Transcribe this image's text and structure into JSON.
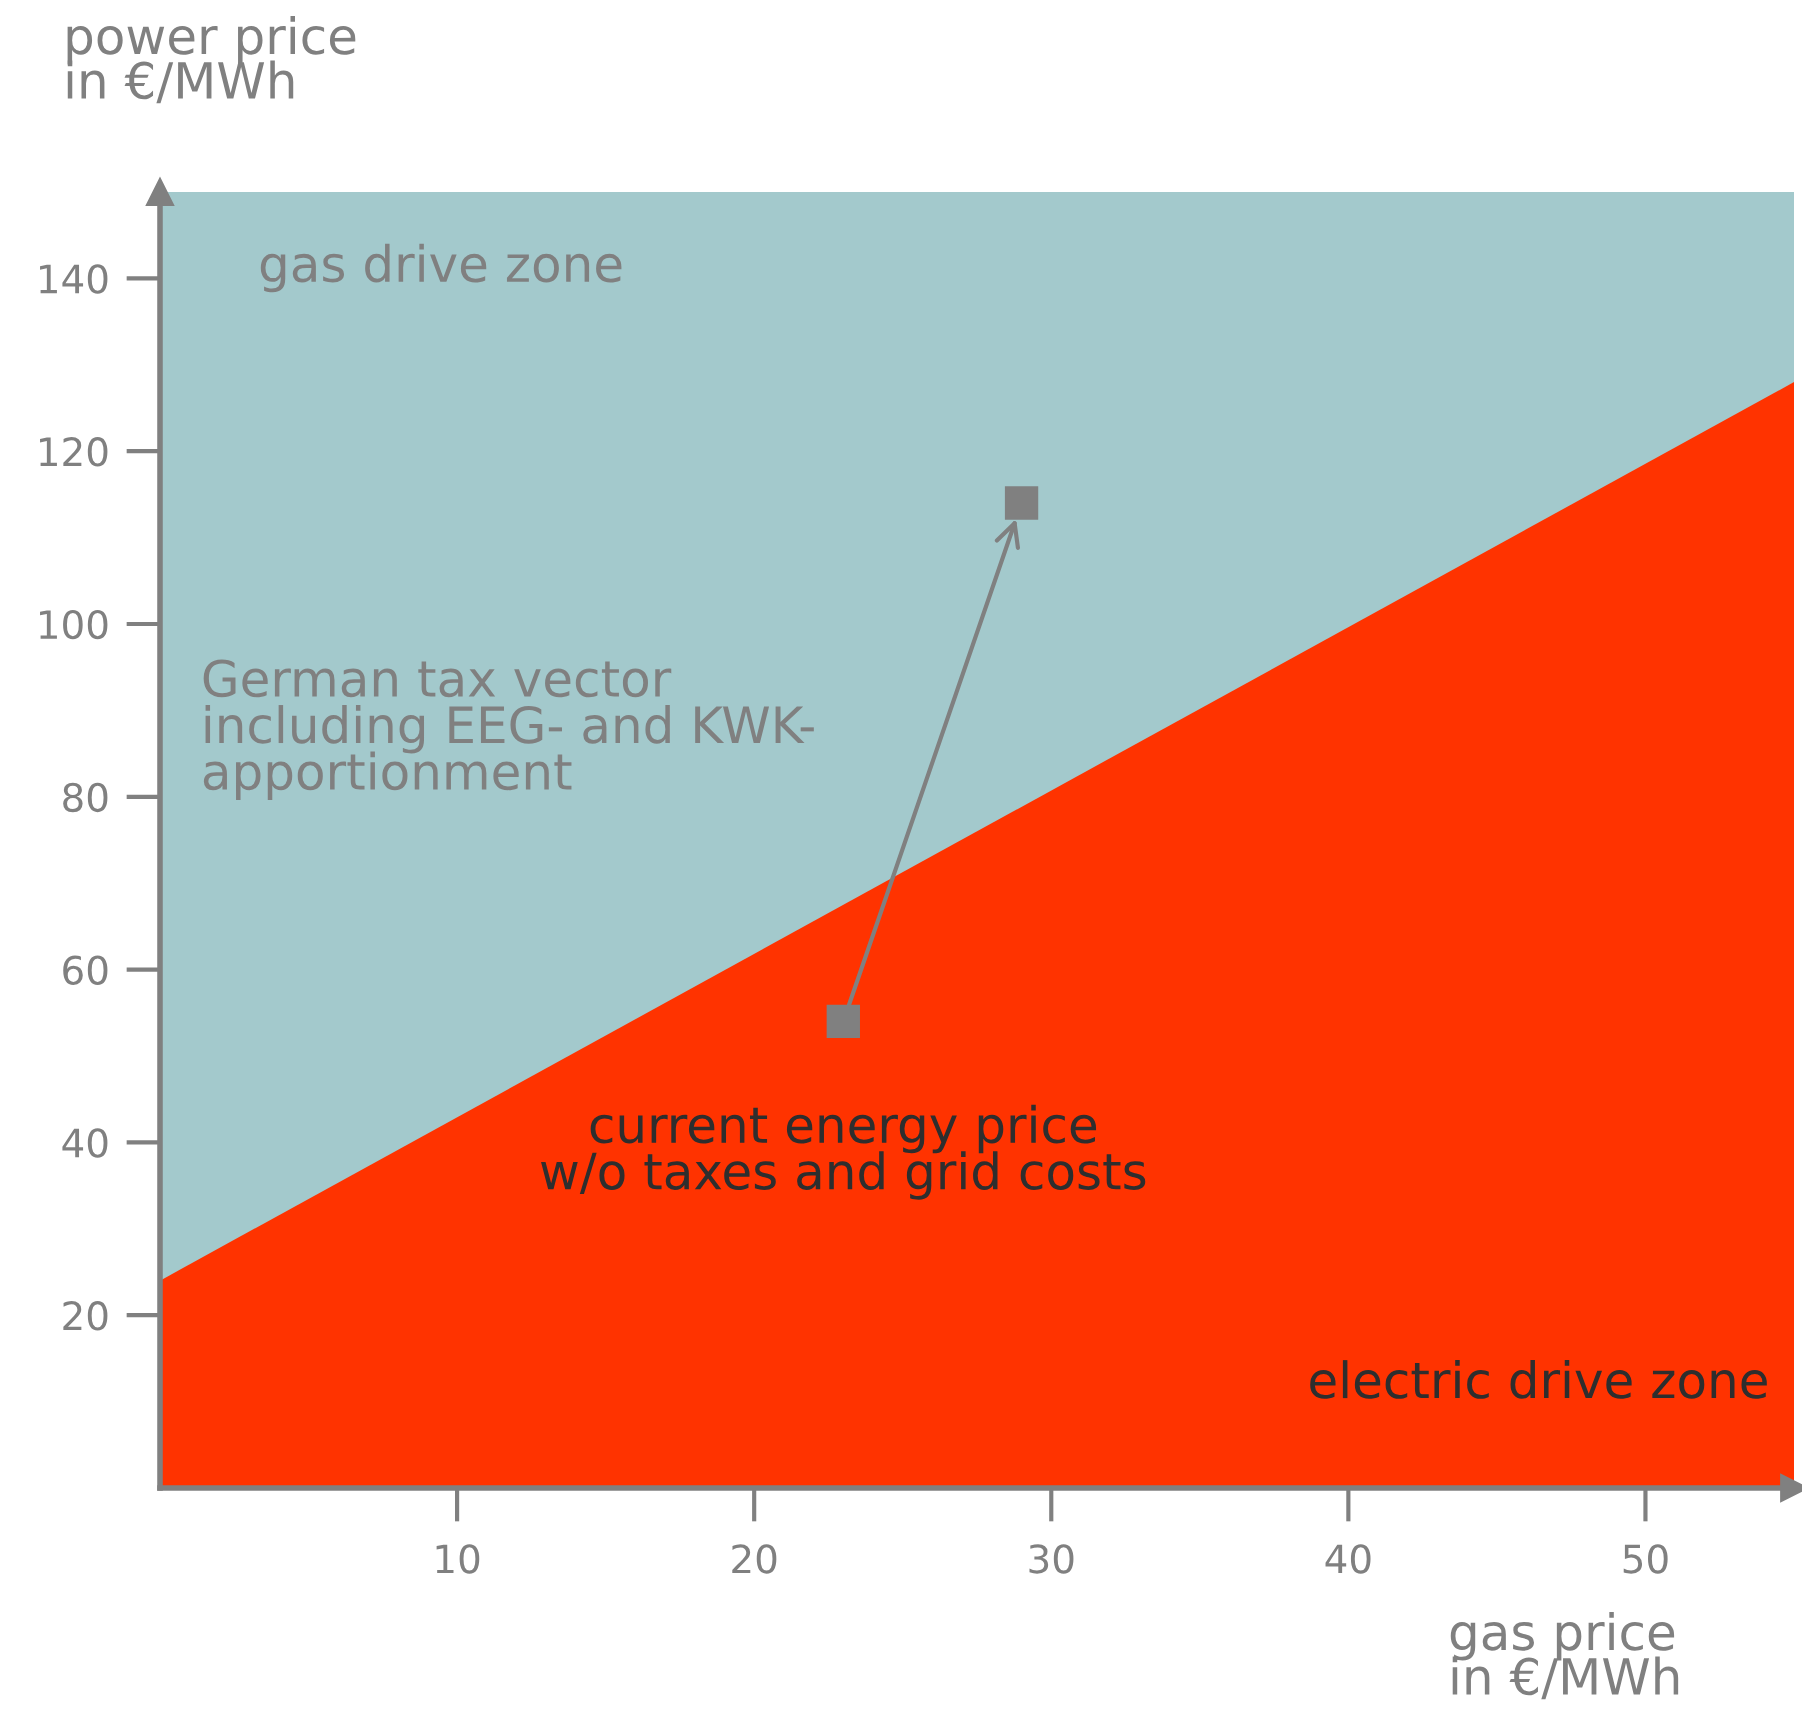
{
  "chart_data": {
    "type": "scatter",
    "xlabel": "gas price\nin €/MWh",
    "ylabel": "power price\nin €/MWh",
    "xlim": [
      0,
      55
    ],
    "xticks": [
      10,
      20,
      30,
      40,
      50
    ],
    "ylim": [
      0,
      150
    ],
    "yticks": [
      20,
      40,
      60,
      80,
      100,
      120,
      140
    ],
    "grid": false,
    "legend": false,
    "bands": [
      {
        "axis": "y",
        "from": 0,
        "to": 150,
        "color": "#a3c9cc"
      }
    ],
    "series": [
      {
        "type": "area",
        "x": [
          0,
          55
        ],
        "values": [
          24,
          128
        ],
        "color": "#ff3300"
      },
      {
        "x": [
          23,
          29
        ],
        "values": [
          54,
          114
        ],
        "color": "#808080",
        "marker": "square"
      }
    ],
    "annotations": [
      "gas drive zone",
      "German tax vector\nincluding EEG- and KWK-\napportionment",
      {
        "text": "current energy price\nw/o taxes and grid costs",
        "x": 23,
        "y": 54
      },
      "electric drive zone"
    ]
  }
}
